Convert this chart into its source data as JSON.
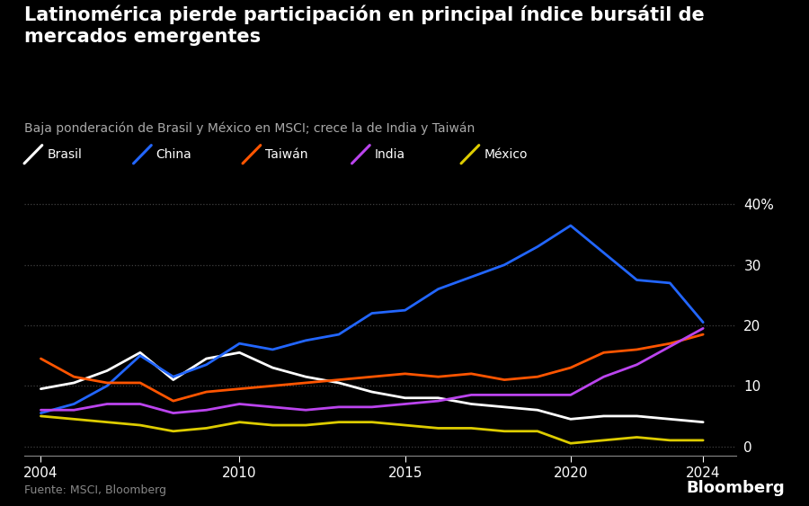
{
  "title": "Latinomérica pierde participación en principal índice bursátil de\nmercados emergentes",
  "subtitle": "Baja ponderación de Brasil y México en MSCI; crece la de India y Taiwán",
  "source": "Fuente: MSCI, Bloomberg",
  "background_color": "#000000",
  "text_color": "#ffffff",
  "years": [
    2004,
    2005,
    2006,
    2007,
    2008,
    2009,
    2010,
    2011,
    2012,
    2013,
    2014,
    2015,
    2016,
    2017,
    2018,
    2019,
    2020,
    2021,
    2022,
    2023,
    2024
  ],
  "series": {
    "Brasil": {
      "color": "#ffffff",
      "data": [
        9.5,
        10.5,
        12.5,
        15.5,
        11.0,
        14.5,
        15.5,
        13.0,
        11.5,
        10.5,
        9.0,
        8.0,
        8.0,
        7.0,
        6.5,
        6.0,
        4.5,
        5.0,
        5.0,
        4.5,
        4.0
      ]
    },
    "China": {
      "color": "#2266ff",
      "data": [
        5.5,
        7.0,
        10.0,
        15.0,
        11.5,
        13.5,
        17.0,
        16.0,
        17.5,
        18.5,
        22.0,
        22.5,
        26.0,
        28.0,
        30.0,
        33.0,
        36.5,
        32.0,
        27.5,
        27.0,
        20.5
      ]
    },
    "Taiwán": {
      "color": "#ff5500",
      "data": [
        14.5,
        11.5,
        10.5,
        10.5,
        7.5,
        9.0,
        9.5,
        10.0,
        10.5,
        11.0,
        11.5,
        12.0,
        11.5,
        12.0,
        11.0,
        11.5,
        13.0,
        15.5,
        16.0,
        17.0,
        18.5
      ]
    },
    "India": {
      "color": "#bb44ee",
      "data": [
        6.0,
        6.0,
        7.0,
        7.0,
        5.5,
        6.0,
        7.0,
        6.5,
        6.0,
        6.5,
        6.5,
        7.0,
        7.5,
        8.5,
        8.5,
        8.5,
        8.5,
        11.5,
        13.5,
        16.5,
        19.5
      ]
    },
    "México": {
      "color": "#ddcc00",
      "data": [
        5.0,
        4.5,
        4.0,
        3.5,
        2.5,
        3.0,
        4.0,
        3.5,
        3.5,
        4.0,
        4.0,
        3.5,
        3.0,
        3.0,
        2.5,
        2.5,
        0.5,
        1.0,
        1.5,
        1.0,
        1.0
      ]
    }
  },
  "ylim": [
    -1.5,
    42
  ],
  "yticks": [
    0,
    10,
    20,
    30,
    40
  ],
  "xlim": [
    2003.5,
    2025.0
  ],
  "xticks": [
    2004,
    2010,
    2015,
    2020,
    2024
  ]
}
